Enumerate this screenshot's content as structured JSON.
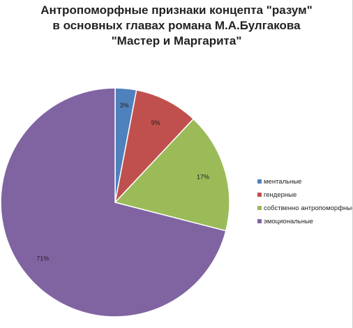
{
  "chart_data": {
    "type": "pie",
    "title_lines": [
      "Антропоморфные признаки концепта \"разум\"",
      "в основных главах романа М.А.Булгакова",
      "\"Мастер и Маргарита\""
    ],
    "categories": [
      "ментальные",
      "гендерные",
      "собственно антропоморфные",
      "эмоциональные"
    ],
    "values": [
      3,
      9,
      17,
      71
    ],
    "data_labels": [
      "3%",
      "9%",
      "17%",
      "71%"
    ],
    "colors": [
      "#4F81BD",
      "#C0504D",
      "#9BBB59",
      "#8064A2"
    ],
    "legend_position": "right"
  }
}
